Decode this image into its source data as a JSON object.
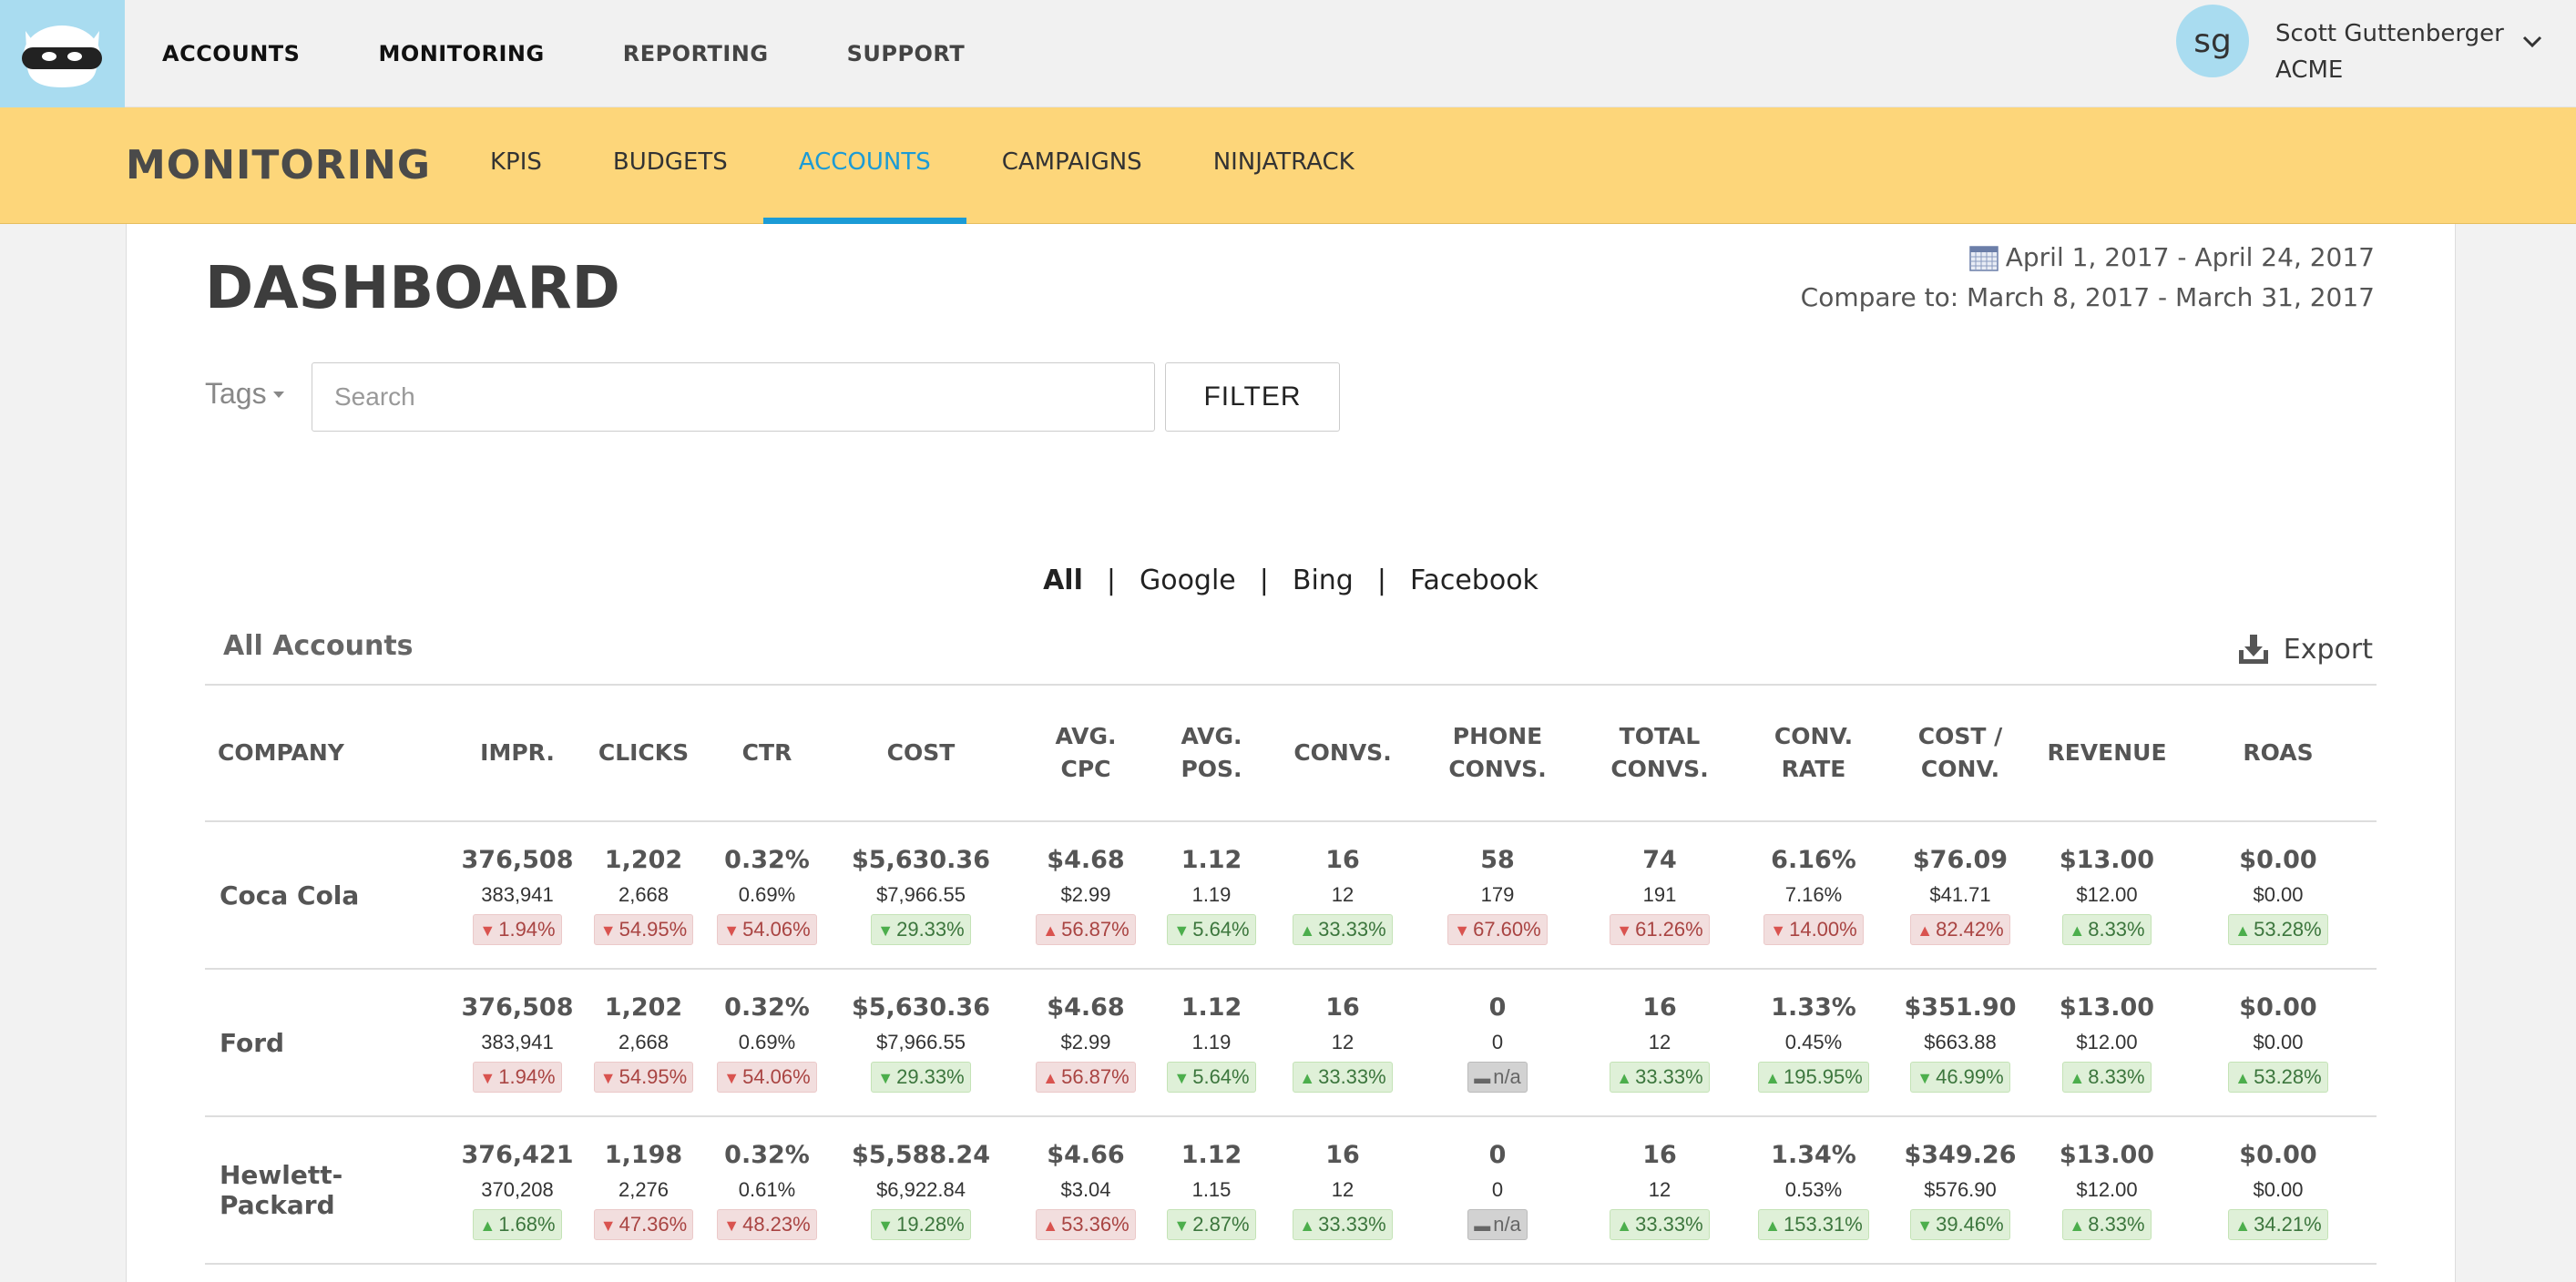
{
  "top_nav": {
    "items": [
      "ACCOUNTS",
      "MONITORING",
      "REPORTING",
      "SUPPORT"
    ]
  },
  "user": {
    "initials": "sg",
    "name": "Scott Guttenberger",
    "org": "ACME"
  },
  "sub_nav": {
    "title": "MONITORING",
    "items": [
      "KPIS",
      "BUDGETS",
      "ACCOUNTS",
      "CAMPAIGNS",
      "NINJATRACK"
    ],
    "active": "ACCOUNTS"
  },
  "dashboard": {
    "title": "DASHBOARD",
    "date_range": "April 1, 2017 - April 24, 2017",
    "compare_range": "Compare to: March 8, 2017 - March 31, 2017",
    "tags_label": "Tags",
    "search_placeholder": "Search",
    "filter_label": "FILTER",
    "platform_tabs": [
      "All",
      "Google",
      "Bing",
      "Facebook"
    ],
    "active_platform": "All",
    "separator": "|",
    "section_label": "All Accounts",
    "export_label": "Export"
  },
  "table": {
    "columns": [
      [
        "COMPANY"
      ],
      [
        "IMPR."
      ],
      [
        "CLICKS"
      ],
      [
        "CTR"
      ],
      [
        "COST"
      ],
      [
        "AVG.",
        "CPC"
      ],
      [
        "AVG.",
        "POS."
      ],
      [
        "CONVS."
      ],
      [
        "PHONE",
        "CONVS."
      ],
      [
        "TOTAL",
        "CONVS."
      ],
      [
        "CONV.",
        "RATE"
      ],
      [
        "COST /",
        "CONV."
      ],
      [
        "REVENUE"
      ],
      [
        "ROAS"
      ]
    ],
    "rows": [
      {
        "company": "Coca Cola",
        "cells": [
          {
            "current": "376,508",
            "previous": "383,941",
            "change": "1.94%",
            "dir": "down"
          },
          {
            "current": "1,202",
            "previous": "2,668",
            "change": "54.95%",
            "dir": "down"
          },
          {
            "current": "0.32%",
            "previous": "0.69%",
            "change": "54.06%",
            "dir": "down"
          },
          {
            "current": "$5,630.36",
            "previous": "$7,966.55",
            "change": "29.33%",
            "dir": "down-good"
          },
          {
            "current": "$4.68",
            "previous": "$2.99",
            "change": "56.87%",
            "dir": "up-bad"
          },
          {
            "current": "1.12",
            "previous": "1.19",
            "change": "5.64%",
            "dir": "down-good"
          },
          {
            "current": "16",
            "previous": "12",
            "change": "33.33%",
            "dir": "up"
          },
          {
            "current": "58",
            "previous": "179",
            "change": "67.60%",
            "dir": "down"
          },
          {
            "current": "74",
            "previous": "191",
            "change": "61.26%",
            "dir": "down"
          },
          {
            "current": "6.16%",
            "previous": "7.16%",
            "change": "14.00%",
            "dir": "down"
          },
          {
            "current": "$76.09",
            "previous": "$41.71",
            "change": "82.42%",
            "dir": "up-bad"
          },
          {
            "current": "$13.00",
            "previous": "$12.00",
            "change": "8.33%",
            "dir": "up"
          },
          {
            "current": "$0.00",
            "previous": "$0.00",
            "change": "53.28%",
            "dir": "up"
          }
        ]
      },
      {
        "company": "Ford",
        "cells": [
          {
            "current": "376,508",
            "previous": "383,941",
            "change": "1.94%",
            "dir": "down"
          },
          {
            "current": "1,202",
            "previous": "2,668",
            "change": "54.95%",
            "dir": "down"
          },
          {
            "current": "0.32%",
            "previous": "0.69%",
            "change": "54.06%",
            "dir": "down"
          },
          {
            "current": "$5,630.36",
            "previous": "$7,966.55",
            "change": "29.33%",
            "dir": "down-good"
          },
          {
            "current": "$4.68",
            "previous": "$2.99",
            "change": "56.87%",
            "dir": "up-bad"
          },
          {
            "current": "1.12",
            "previous": "1.19",
            "change": "5.64%",
            "dir": "down-good"
          },
          {
            "current": "16",
            "previous": "12",
            "change": "33.33%",
            "dir": "up"
          },
          {
            "current": "0",
            "previous": "0",
            "change": "n/a",
            "dir": "na"
          },
          {
            "current": "16",
            "previous": "12",
            "change": "33.33%",
            "dir": "up"
          },
          {
            "current": "1.33%",
            "previous": "0.45%",
            "change": "195.95%",
            "dir": "up"
          },
          {
            "current": "$351.90",
            "previous": "$663.88",
            "change": "46.99%",
            "dir": "down-good"
          },
          {
            "current": "$13.00",
            "previous": "$12.00",
            "change": "8.33%",
            "dir": "up"
          },
          {
            "current": "$0.00",
            "previous": "$0.00",
            "change": "53.28%",
            "dir": "up"
          }
        ]
      },
      {
        "company": "Hewlett-Packard",
        "cells": [
          {
            "current": "376,421",
            "previous": "370,208",
            "change": "1.68%",
            "dir": "up"
          },
          {
            "current": "1,198",
            "previous": "2,276",
            "change": "47.36%",
            "dir": "down"
          },
          {
            "current": "0.32%",
            "previous": "0.61%",
            "change": "48.23%",
            "dir": "down"
          },
          {
            "current": "$5,588.24",
            "previous": "$6,922.84",
            "change": "19.28%",
            "dir": "down-good"
          },
          {
            "current": "$4.66",
            "previous": "$3.04",
            "change": "53.36%",
            "dir": "up-bad"
          },
          {
            "current": "1.12",
            "previous": "1.15",
            "change": "2.87%",
            "dir": "down-good"
          },
          {
            "current": "16",
            "previous": "12",
            "change": "33.33%",
            "dir": "up"
          },
          {
            "current": "0",
            "previous": "0",
            "change": "n/a",
            "dir": "na"
          },
          {
            "current": "16",
            "previous": "12",
            "change": "33.33%",
            "dir": "up"
          },
          {
            "current": "1.34%",
            "previous": "0.53%",
            "change": "153.31%",
            "dir": "up"
          },
          {
            "current": "$349.26",
            "previous": "$576.90",
            "change": "39.46%",
            "dir": "down-good"
          },
          {
            "current": "$13.00",
            "previous": "$12.00",
            "change": "8.33%",
            "dir": "up"
          },
          {
            "current": "$0.00",
            "previous": "$0.00",
            "change": "34.21%",
            "dir": "up"
          }
        ]
      }
    ]
  },
  "colors": {
    "accent": "#1b9bd6",
    "subnav_bg": "#fdd67a",
    "logo_bg": "#a9dcf0",
    "positive": "#3c763d",
    "negative": "#a94442"
  }
}
